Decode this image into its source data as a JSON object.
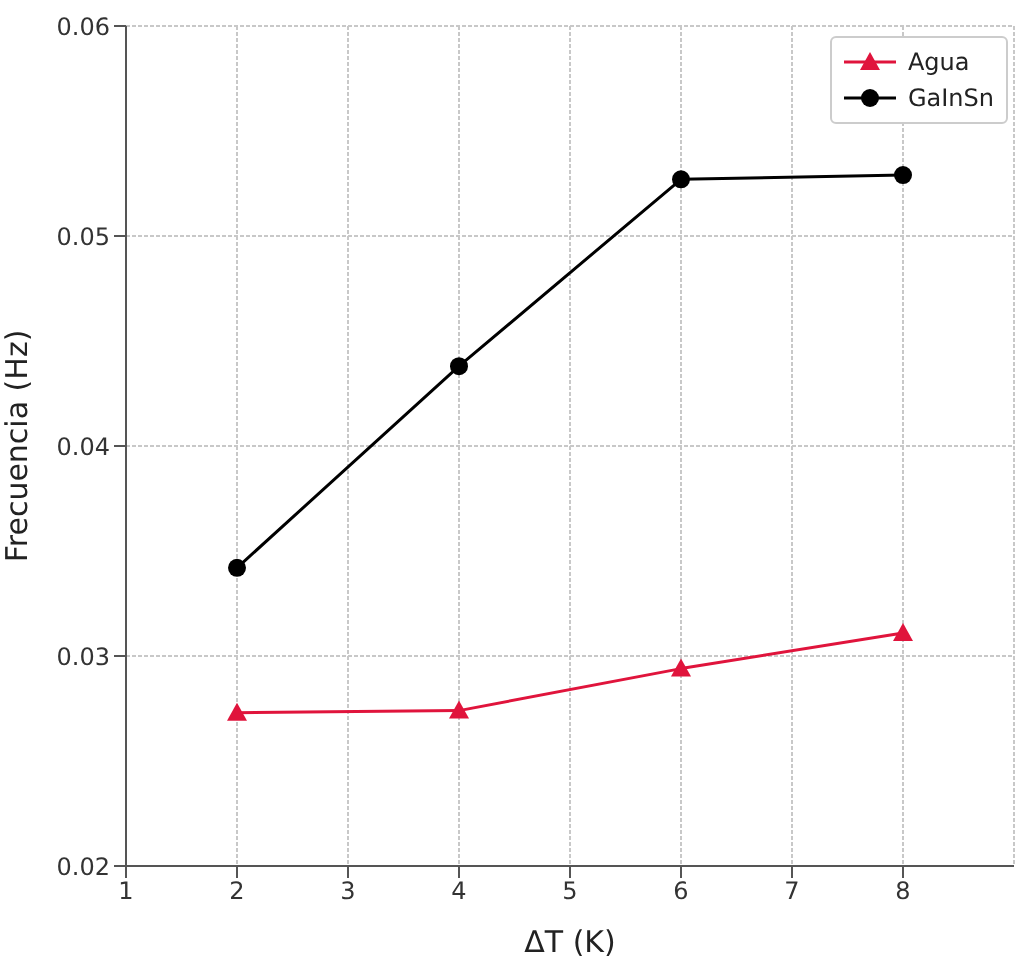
{
  "chart_data": {
    "type": "line",
    "xlabel": "ΔT (K)",
    "ylabel": "Frecuencia (Hz)",
    "xlim": [
      1,
      9
    ],
    "xticks": [
      1,
      2,
      3,
      4,
      5,
      6,
      7,
      8
    ],
    "ylim": [
      0.02,
      0.06
    ],
    "yticks": [
      0.02,
      0.03,
      0.04,
      0.05,
      0.06
    ],
    "grid": true,
    "legend": "top right",
    "series": [
      {
        "name": "Agua",
        "color": "#e0143c",
        "marker": "triangle",
        "x": [
          2,
          4,
          6,
          8
        ],
        "values": [
          0.0273,
          0.0274,
          0.0294,
          0.0311
        ]
      },
      {
        "name": "GaInSn",
        "color": "#000000",
        "marker": "circle",
        "x": [
          2,
          4,
          6,
          8
        ],
        "values": [
          0.0342,
          0.0438,
          0.0527,
          0.0529
        ]
      }
    ]
  }
}
